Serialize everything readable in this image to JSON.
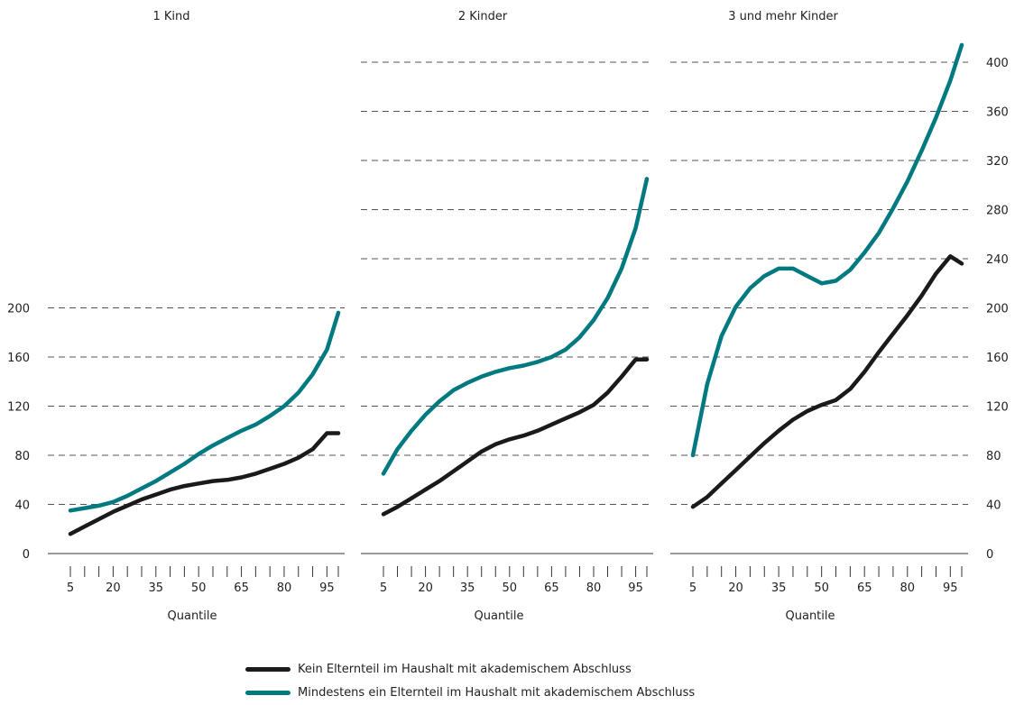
{
  "chart_data": [
    {
      "type": "line",
      "title": "1 Kind",
      "xlabel": "Quantile",
      "ylabel": "",
      "x": [
        5,
        10,
        15,
        20,
        25,
        30,
        35,
        40,
        45,
        50,
        55,
        60,
        65,
        70,
        75,
        80,
        85,
        90,
        95,
        99
      ],
      "x_tick_labels": [
        "5",
        "20",
        "35",
        "50",
        "65",
        "80",
        "95"
      ],
      "ylim": [
        0,
        400
      ],
      "y_ticks": [
        0,
        40,
        80,
        120,
        160,
        200
      ],
      "grid": true,
      "series": [
        {
          "name": "Kein Elternteil im Haushalt mit akademischem Abschluss",
          "color": "#1a1a1a",
          "values": [
            16,
            22,
            28,
            34,
            39,
            44,
            48,
            52,
            55,
            57,
            59,
            60,
            62,
            65,
            69,
            73,
            78,
            85,
            98,
            98
          ]
        },
        {
          "name": "Mindestens ein Elternteil im Haushalt mit akademischem Abschluss",
          "color": "#007a80",
          "values": [
            35,
            37,
            39,
            42,
            47,
            53,
            59,
            66,
            73,
            81,
            88,
            94,
            100,
            105,
            112,
            120,
            131,
            146,
            166,
            196
          ]
        }
      ]
    },
    {
      "type": "line",
      "title": "2 Kinder",
      "xlabel": "Quantile",
      "ylabel": "",
      "x": [
        5,
        10,
        15,
        20,
        25,
        30,
        35,
        40,
        45,
        50,
        55,
        60,
        65,
        70,
        75,
        80,
        85,
        90,
        95,
        99
      ],
      "x_tick_labels": [
        "5",
        "20",
        "35",
        "50",
        "65",
        "80",
        "95"
      ],
      "ylim": [
        0,
        400
      ],
      "y_ticks": [
        0,
        40,
        80,
        120,
        160,
        200,
        240,
        280,
        320,
        360,
        400
      ],
      "grid": true,
      "series": [
        {
          "name": "Kein Elternteil im Haushalt mit akademischem Abschluss",
          "color": "#1a1a1a",
          "values": [
            32,
            38,
            45,
            52,
            59,
            67,
            75,
            83,
            89,
            93,
            96,
            100,
            105,
            110,
            115,
            121,
            131,
            144,
            158,
            158
          ]
        },
        {
          "name": "Mindestens ein Elternteil im Haushalt mit akademischem Abschluss",
          "color": "#007a80",
          "values": [
            65,
            85,
            100,
            113,
            124,
            133,
            139,
            144,
            148,
            151,
            153,
            156,
            160,
            166,
            176,
            190,
            208,
            232,
            265,
            305
          ]
        }
      ]
    },
    {
      "type": "line",
      "title": "3 und mehr Kinder",
      "xlabel": "Quantile",
      "ylabel": "",
      "x": [
        5,
        10,
        15,
        20,
        25,
        30,
        35,
        40,
        45,
        50,
        55,
        60,
        65,
        70,
        75,
        80,
        85,
        90,
        95,
        99
      ],
      "x_tick_labels": [
        "5",
        "20",
        "35",
        "50",
        "65",
        "80",
        "95"
      ],
      "ylim": [
        0,
        400
      ],
      "y_ticks": [
        0,
        40,
        80,
        120,
        160,
        200,
        240,
        280,
        320,
        360,
        400
      ],
      "grid": true,
      "series": [
        {
          "name": "Kein Elternteil im Haushalt mit akademischem Abschluss",
          "color": "#1a1a1a",
          "values": [
            38,
            46,
            57,
            68,
            79,
            90,
            100,
            109,
            116,
            121,
            125,
            134,
            148,
            164,
            179,
            194,
            210,
            228,
            242,
            236
          ]
        },
        {
          "name": "Mindestens ein Elternteil im Haushalt mit akademischem Abschluss",
          "color": "#007a80",
          "values": [
            80,
            138,
            177,
            201,
            216,
            226,
            232,
            232,
            226,
            220,
            222,
            231,
            245,
            261,
            281,
            303,
            328,
            355,
            385,
            414
          ]
        }
      ]
    }
  ],
  "legend": [
    {
      "label": "Kein Elternteil im Haushalt mit akademischem Abschluss",
      "color": "#1a1a1a"
    },
    {
      "label": "Mindestens ein Elternteil im Haushalt mit akademischem Abschluss",
      "color": "#007a80"
    }
  ]
}
